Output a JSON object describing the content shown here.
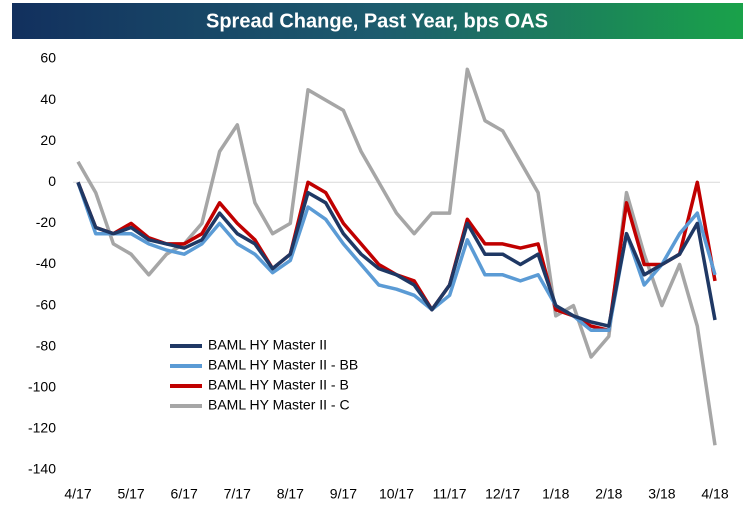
{
  "chart_data": {
    "type": "line",
    "title": "Spread Change, Past Year, bps OAS",
    "categories": [
      "4/17",
      null,
      null,
      "5/17",
      null,
      null,
      "6/17",
      null,
      null,
      "7/17",
      null,
      null,
      "8/17",
      null,
      null,
      "9/17",
      null,
      null,
      "10/17",
      null,
      null,
      "11/17",
      null,
      null,
      "12/17",
      null,
      null,
      "1/18",
      null,
      null,
      "2/18",
      null,
      null,
      "3/18",
      null,
      null,
      "4/18"
    ],
    "series": [
      {
        "name": "BAML HY Master II",
        "color": "#1f3864",
        "values": [
          0,
          -22,
          -25,
          -22,
          -28,
          -30,
          -32,
          -28,
          -15,
          -25,
          -30,
          -42,
          -35,
          -5,
          -10,
          -25,
          -35,
          -42,
          -45,
          -50,
          -62,
          -50,
          -20,
          -35,
          -35,
          -40,
          -35,
          -60,
          -65,
          -68,
          -70,
          -25,
          -45,
          -40,
          -35,
          -20,
          -67
        ]
      },
      {
        "name": "BAML HY Master II - BB",
        "color": "#5b9bd5",
        "values": [
          0,
          -25,
          -25,
          -25,
          -30,
          -33,
          -35,
          -30,
          -20,
          -30,
          -35,
          -44,
          -38,
          -12,
          -18,
          -30,
          -40,
          -50,
          -52,
          -55,
          -62,
          -55,
          -28,
          -45,
          -45,
          -48,
          -45,
          -60,
          -65,
          -72,
          -72,
          -25,
          -50,
          -40,
          -25,
          -15,
          -45
        ]
      },
      {
        "name": "BAML HY Master II - B",
        "color": "#c00000",
        "values": [
          0,
          -22,
          -25,
          -20,
          -27,
          -30,
          -30,
          -25,
          -10,
          -20,
          -28,
          -42,
          -35,
          0,
          -5,
          -20,
          -30,
          -40,
          -45,
          -48,
          -62,
          -50,
          -18,
          -30,
          -30,
          -32,
          -30,
          -62,
          -65,
          -70,
          -72,
          -10,
          -40,
          -40,
          -35,
          0,
          -48
        ]
      },
      {
        "name": "BAML HY Master II - C",
        "color": "#a6a6a6",
        "values": [
          10,
          -5,
          -30,
          -35,
          -45,
          -35,
          -30,
          -20,
          15,
          28,
          -10,
          -25,
          -20,
          45,
          40,
          35,
          15,
          0,
          -15,
          -25,
          -15,
          -15,
          55,
          30,
          25,
          10,
          -5,
          -65,
          -60,
          -85,
          -75,
          -5,
          -35,
          -60,
          -40,
          -70,
          -128
        ]
      }
    ],
    "ylim": [
      -140,
      60
    ],
    "yticks": [
      -140,
      -120,
      -100,
      -80,
      -60,
      -40,
      -20,
      0,
      20,
      40,
      60
    ]
  }
}
